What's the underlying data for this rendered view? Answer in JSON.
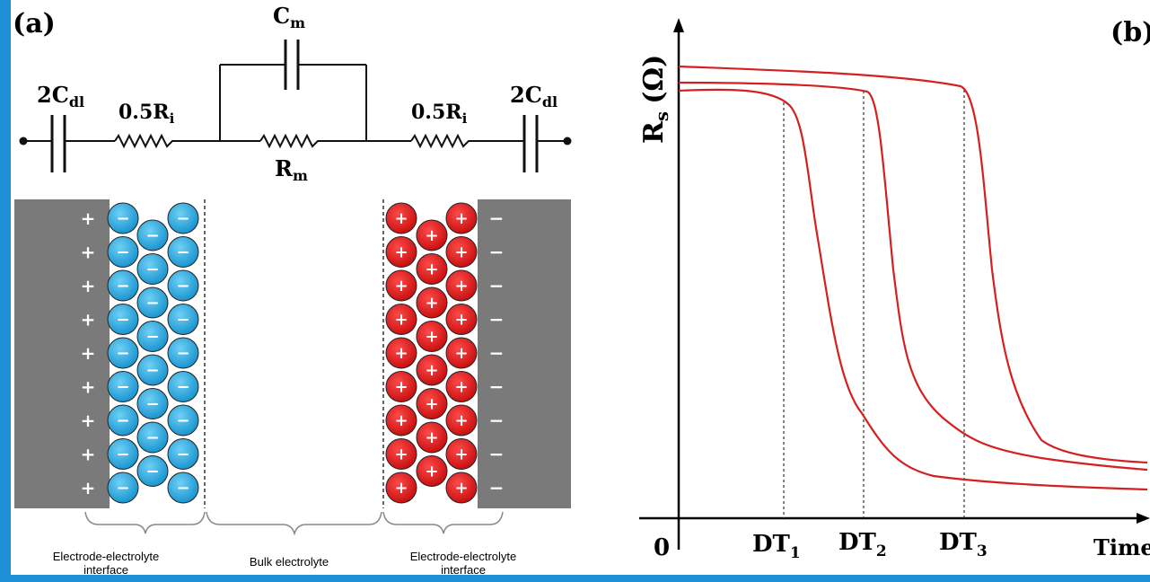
{
  "panel_a": {
    "label": "(a)",
    "circuit": {
      "left_cap": {
        "main": "2C",
        "sub": "dl"
      },
      "left_res": {
        "main": "0.5R",
        "sub": "i"
      },
      "top_cap": {
        "main": "C",
        "sub": "m"
      },
      "mid_res": {
        "main": "R",
        "sub": "m"
      },
      "right_res": {
        "main": "0.5R",
        "sub": "i"
      },
      "right_cap": {
        "main": "2C",
        "sub": "dl"
      }
    },
    "interface_left": {
      "line1": "Electrode-electrolyte",
      "line2": "interface"
    },
    "bulk": "Bulk electrolyte",
    "interface_right": {
      "line1": "Electrode-electrolyte",
      "line2": "interface"
    },
    "plus": "+",
    "minus": "−",
    "colors": {
      "negative_ion": "#29a8e0",
      "positive_ion": "#e01b1b",
      "electrode": "#7a7a7a"
    }
  },
  "panel_b": {
    "label": "(b)",
    "y_axis": {
      "main": "R",
      "sub": "s",
      "unit": "(Ω)"
    },
    "x_axis": "Time",
    "origin": "0",
    "markers": [
      {
        "main": "DT",
        "sub": "1"
      },
      {
        "main": "DT",
        "sub": "2"
      },
      {
        "main": "DT",
        "sub": "3"
      }
    ],
    "curve_color": "#d42020"
  }
}
